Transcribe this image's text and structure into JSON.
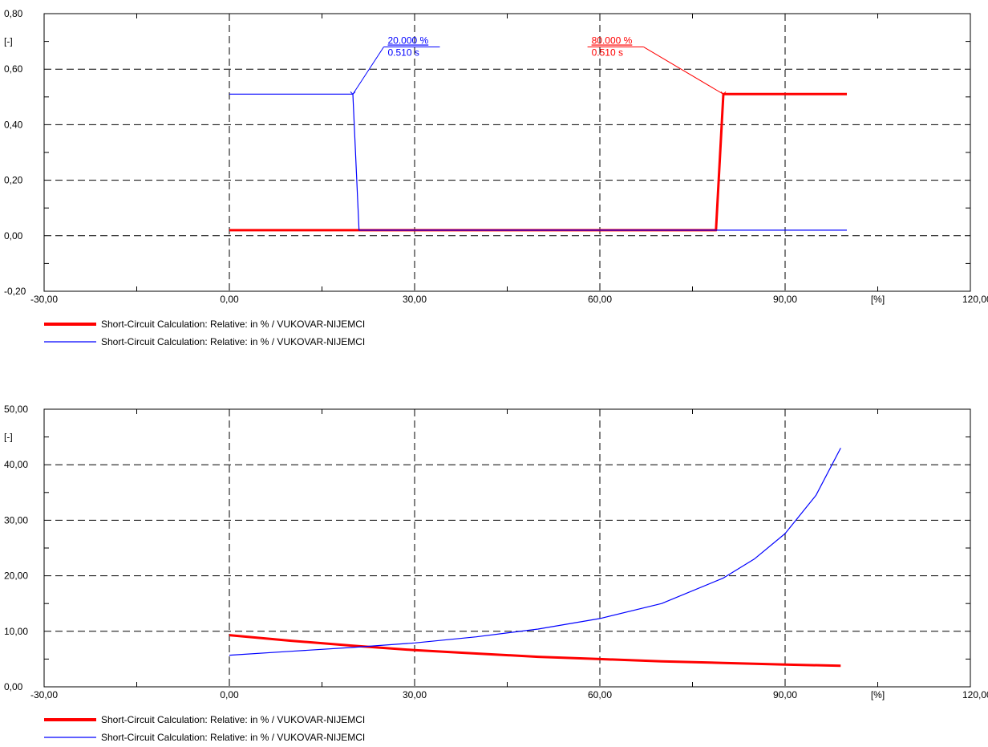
{
  "chart_data": [
    {
      "type": "line",
      "title": "",
      "ylabel": "[-]",
      "xunit": "[%]",
      "xlim": [
        -30,
        120
      ],
      "ylim": [
        -0.2,
        0.8
      ],
      "xticks": [
        -30,
        0,
        30,
        60,
        90,
        120
      ],
      "yticks": [
        -0.2,
        0,
        0.2,
        0.4,
        0.6,
        0.8
      ],
      "x_tick_labels": [
        "-30,00",
        "0,00",
        "30,00",
        "60,00",
        "90,00",
        "120,00"
      ],
      "y_tick_labels": [
        "-0,20",
        "0,00",
        "0,20",
        "0,40",
        "0,60",
        "0,80"
      ],
      "grid": true,
      "legend_position": "bottom-left",
      "series": [
        {
          "name": "Short-Circuit Calculation: Relative: in % / VUKOVAR-NIJEMCI",
          "color": "#ff0000",
          "width": "thick",
          "x": [
            0,
            78.8,
            80,
            100
          ],
          "y": [
            0.02,
            0.02,
            0.51,
            0.51
          ]
        },
        {
          "name": "Short-Circuit Calculation: Relative: in % / VUKOVAR-NIJEMCI",
          "color": "#0000ff",
          "width": "thin",
          "x": [
            0,
            20,
            21,
            100
          ],
          "y": [
            0.51,
            0.51,
            0.02,
            0.02
          ]
        }
      ],
      "annotations": [
        {
          "series": 1,
          "color": "#0000ff",
          "at": [
            20,
            0.51
          ],
          "label_at": [
            25,
            0.68
          ],
          "line1": "20.000 %",
          "line2": "0.510 s"
        },
        {
          "series": 0,
          "color": "#ff0000",
          "at": [
            80,
            0.51
          ],
          "label_at": [
            58,
            0.68
          ],
          "line1": "80.000 %",
          "line2": "0.510 s"
        }
      ]
    },
    {
      "type": "line",
      "title": "",
      "ylabel": "[-]",
      "xunit": "[%]",
      "xlim": [
        -30,
        120
      ],
      "ylim": [
        0,
        50
      ],
      "xticks": [
        -30,
        0,
        30,
        60,
        90,
        120
      ],
      "yticks": [
        0,
        10,
        20,
        30,
        40,
        50
      ],
      "x_tick_labels": [
        "-30,00",
        "0,00",
        "30,00",
        "60,00",
        "90,00",
        "120,00"
      ],
      "y_tick_labels": [
        "0,00",
        "10,00",
        "20,00",
        "30,00",
        "40,00",
        "50,00"
      ],
      "grid": true,
      "legend_position": "bottom-left",
      "series": [
        {
          "name": "Short-Circuit Calculation: Relative: in % / VUKOVAR-NIJEMCI",
          "color": "#ff0000",
          "width": "thick",
          "x": [
            0,
            10,
            20,
            30,
            40,
            50,
            60,
            70,
            80,
            90,
            99
          ],
          "y": [
            9.3,
            8.3,
            7.4,
            6.6,
            6.0,
            5.4,
            5.0,
            4.6,
            4.3,
            4.0,
            3.8
          ]
        },
        {
          "name": "Short-Circuit Calculation: Relative: in % / VUKOVAR-NIJEMCI",
          "color": "#0000ff",
          "width": "thin",
          "x": [
            0,
            10,
            20,
            30,
            40,
            50,
            60,
            70,
            80,
            85,
            90,
            95,
            99
          ],
          "y": [
            5.7,
            6.4,
            7.1,
            7.9,
            9.0,
            10.4,
            12.3,
            15.0,
            19.6,
            23.0,
            27.6,
            34.5,
            43.0
          ]
        }
      ]
    }
  ]
}
